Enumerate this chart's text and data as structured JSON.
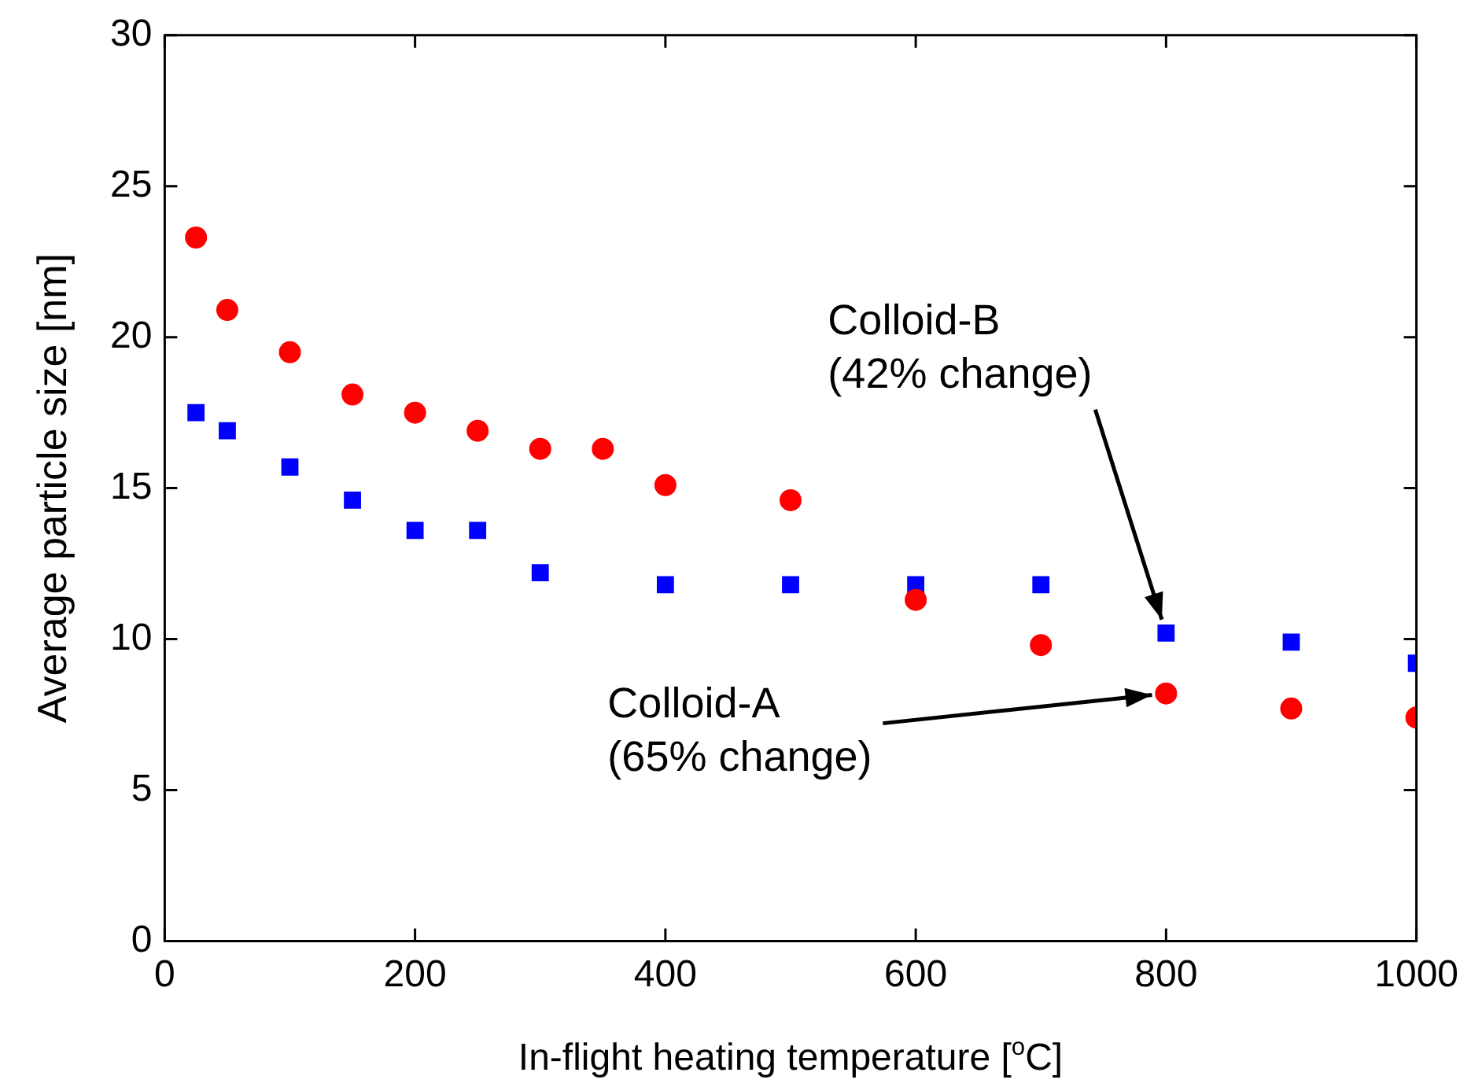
{
  "chart_data": {
    "type": "scatter",
    "xlabel": "In-flight heating temperature [$^{o}$C]",
    "ylabel": "Average particle size [nm]",
    "xlim": [
      0,
      1000
    ],
    "xticks": [
      0,
      200,
      400,
      600,
      800,
      1000
    ],
    "ylim": [
      0,
      30
    ],
    "yticks": [
      0,
      5,
      10,
      15,
      20,
      25,
      30
    ],
    "grid": false,
    "legend": false,
    "series": [
      {
        "color": "#ff0000",
        "marker": "circle",
        "x": [
          25,
          50,
          100,
          150,
          200,
          250,
          300,
          350,
          400,
          500,
          600,
          700,
          800,
          900,
          1000
        ],
        "values": [
          23.3,
          20.9,
          19.5,
          18.1,
          17.5,
          16.9,
          16.3,
          16.3,
          15.1,
          14.6,
          11.3,
          9.8,
          8.2,
          7.7,
          7.4
        ]
      },
      {
        "color": "#0000ff",
        "marker": "square",
        "x": [
          25,
          50,
          100,
          150,
          200,
          250,
          300,
          400,
          500,
          600,
          700,
          800,
          900,
          1000
        ],
        "values": [
          17.5,
          16.9,
          15.7,
          14.6,
          13.6,
          13.6,
          12.2,
          11.8,
          11.8,
          11.8,
          11.8,
          10.2,
          9.9,
          9.2
        ]
      }
    ],
    "annotations": [
      {
        "text": "Colloid-B\n(42% change)",
        "x": 800,
        "y": 10.2
      },
      {
        "text": "Colloid-A\n(65% change)",
        "x": 800,
        "y": 8.2
      }
    ]
  }
}
